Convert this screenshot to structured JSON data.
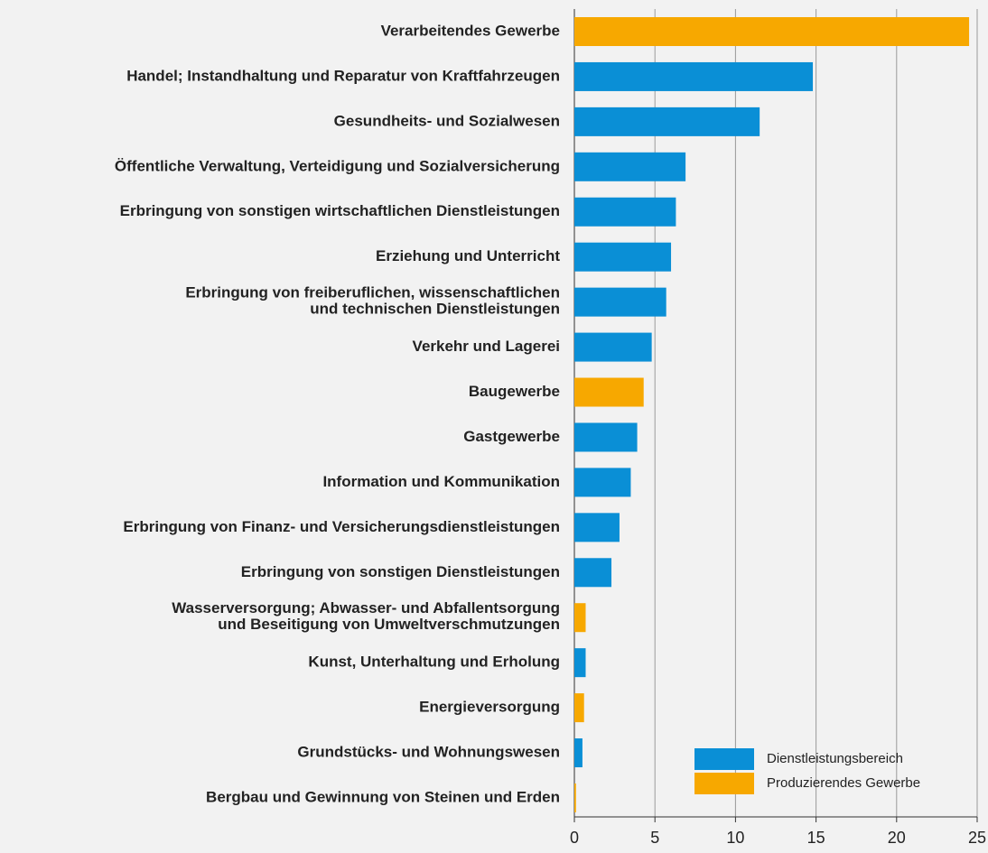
{
  "chart_data": {
    "type": "barh",
    "categories": [
      "Verarbeitendes Gewerbe",
      "Handel; Instandhaltung und Reparatur von Kraftfahrzeugen",
      "Gesundheits- und Sozialwesen",
      "Öffentliche Verwaltung, Verteidigung und Sozialversicherung",
      "Erbringung von sonstigen wirtschaftlichen Dienstleistungen",
      "Erziehung und Unterricht",
      "Erbringung von freiberuflichen, wissenschaftlichen\nund technischen Dienstleistungen",
      "Verkehr und Lagerei",
      "Baugewerbe",
      "Gastgewerbe",
      "Information und Kommunikation",
      "Erbringung von Finanz- und Versicherungsdienstleistungen",
      "Erbringung von sonstigen Dienstleistungen",
      "Wasserversorgung; Abwasser- und Abfallentsorgung\nund Beseitigung von Umweltverschmutzungen",
      "Kunst, Unterhaltung und Erholung",
      "Energieversorgung",
      "Grundstücks- und Wohnungswesen",
      "Bergbau und Gewinnung von Steinen und Erden"
    ],
    "series": [
      {
        "name": "Dienstleistungsbereich",
        "color": "#0a8fd6",
        "values": [
          null,
          14.8,
          11.5,
          6.9,
          6.3,
          6.0,
          5.7,
          4.8,
          null,
          3.9,
          3.5,
          2.8,
          2.3,
          null,
          0.7,
          null,
          0.5,
          null
        ]
      },
      {
        "name": "Produzierendes Gewerbe",
        "color": "#f7a800",
        "values": [
          24.5,
          null,
          null,
          null,
          null,
          null,
          null,
          null,
          4.3,
          null,
          null,
          null,
          null,
          0.7,
          null,
          0.6,
          null,
          0.1
        ]
      }
    ],
    "xlim": [
      0,
      25
    ],
    "xticks": [
      0,
      5,
      10,
      15,
      20,
      25
    ],
    "grid": true,
    "legend": "lower right"
  }
}
